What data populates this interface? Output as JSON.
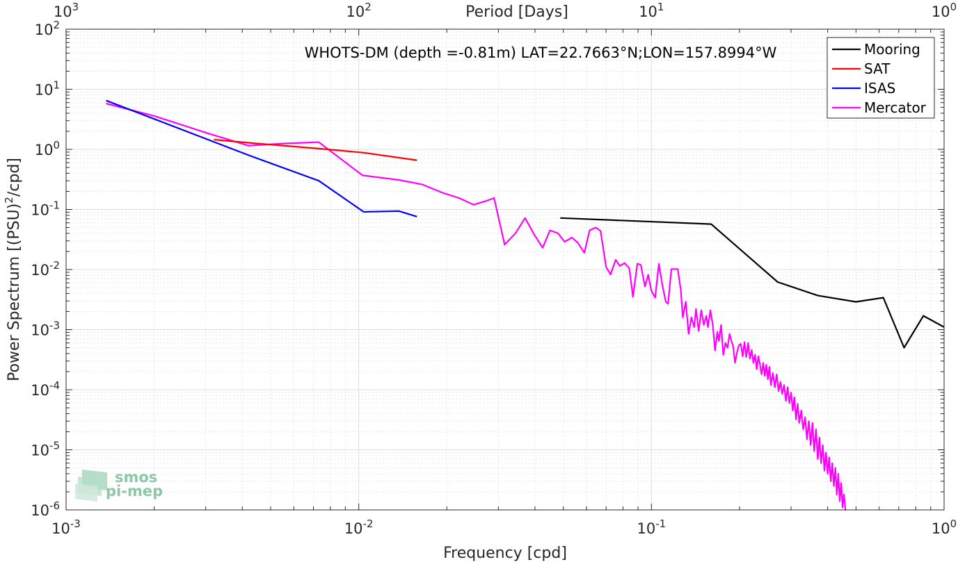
{
  "chart_data": {
    "type": "line",
    "title": "WHOTS-DM (depth =-0.81m) LAT=22.7663°N;LON=157.8994°W",
    "xlabel": "Frequency [cpd]",
    "ylabel": "Power Spectrum [(PSU)^2/cpd]",
    "top_xlabel": "Period [Days]",
    "xscale": "log",
    "yscale": "log",
    "xlim": [
      0.001,
      1
    ],
    "ylim": [
      1e-06,
      100
    ],
    "grid": true,
    "legend_position": "top-right",
    "x_ticks": [
      0.001,
      0.01,
      0.1,
      1
    ],
    "y_ticks": [
      1e-06,
      1e-05,
      0.0001,
      0.001,
      0.01,
      0.1,
      1,
      10,
      100
    ],
    "top_ticks": [
      1000,
      100,
      10,
      1
    ],
    "series": [
      {
        "name": "Mooring",
        "color": "#000000",
        "x": [
          0.0488,
          0.16,
          0.27,
          0.37,
          0.5,
          0.62,
          0.73,
          0.85,
          1.0
        ],
        "y": [
          0.072,
          0.057,
          0.0062,
          0.0037,
          0.0029,
          0.0034,
          0.0005,
          0.0017,
          0.0011
        ]
      },
      {
        "name": "SAT",
        "color": "#ff0000",
        "x": [
          0.0032,
          0.0045,
          0.0073,
          0.0104,
          0.0158
        ],
        "y": [
          1.45,
          1.25,
          1.03,
          0.88,
          0.66
        ]
      },
      {
        "name": "ISAS",
        "color": "#0000ff",
        "x": [
          0.00137,
          0.0042,
          0.0073,
          0.0104,
          0.0137,
          0.0158
        ],
        "y": [
          6.5,
          0.8,
          0.3,
          0.091,
          0.094,
          0.076
        ]
      },
      {
        "name": "Mercator",
        "color": "#ff00ff",
        "x": [
          0.00137,
          0.002,
          0.003,
          0.0042,
          0.0055,
          0.0073,
          0.0085,
          0.0103,
          0.0137,
          0.0165,
          0.0193,
          0.022,
          0.0247,
          0.0274,
          0.029,
          0.0315,
          0.0343,
          0.037,
          0.0398,
          0.0425,
          0.045,
          0.048,
          0.0505,
          0.0535,
          0.056,
          0.059,
          0.0615,
          0.0645,
          0.067,
          0.07,
          0.0725,
          0.0755,
          0.078,
          0.081,
          0.084,
          0.0865,
          0.0895,
          0.092,
          0.095,
          0.0975,
          0.1,
          0.103,
          0.106,
          0.109,
          0.112,
          0.114,
          0.117,
          0.12,
          0.123,
          0.126,
          0.128,
          0.131,
          0.134,
          0.137,
          0.14,
          0.142,
          0.145,
          0.148,
          0.151,
          0.154,
          0.156,
          0.159,
          0.162,
          0.165,
          0.168,
          0.17,
          0.173,
          0.176,
          0.179,
          0.182,
          0.185,
          0.188,
          0.19,
          0.193,
          0.196,
          0.199,
          0.202,
          0.205,
          0.208,
          0.211,
          0.214,
          0.217,
          0.22,
          0.223,
          0.226,
          0.229,
          0.232,
          0.235,
          0.238,
          0.241,
          0.244,
          0.247,
          0.25,
          0.253,
          0.256,
          0.26,
          0.264,
          0.268,
          0.272,
          0.276,
          0.28,
          0.284,
          0.288,
          0.292,
          0.296,
          0.3,
          0.304,
          0.308,
          0.312,
          0.316,
          0.32,
          0.325,
          0.33,
          0.335,
          0.34,
          0.345,
          0.35,
          0.355,
          0.36,
          0.365,
          0.37,
          0.375,
          0.38,
          0.385,
          0.39,
          0.395,
          0.4,
          0.405,
          0.41,
          0.415,
          0.42,
          0.425,
          0.43,
          0.435,
          0.44,
          0.445,
          0.45,
          0.455,
          0.46
        ],
        "y": [
          5.8,
          3.6,
          1.9,
          1.15,
          1.25,
          1.32,
          0.75,
          0.37,
          0.31,
          0.26,
          0.19,
          0.155,
          0.12,
          0.14,
          0.155,
          0.026,
          0.04,
          0.072,
          0.038,
          0.023,
          0.045,
          0.04,
          0.029,
          0.034,
          0.028,
          0.019,
          0.045,
          0.05,
          0.044,
          0.011,
          0.0083,
          0.0145,
          0.0115,
          0.0128,
          0.0105,
          0.0035,
          0.0125,
          0.012,
          0.0052,
          0.0082,
          0.0044,
          0.0034,
          0.0125,
          0.0055,
          0.0029,
          0.0027,
          0.0102,
          0.0102,
          0.0102,
          0.0045,
          0.0016,
          0.0029,
          0.00085,
          0.0016,
          0.0011,
          0.0022,
          0.00095,
          0.0021,
          0.0012,
          0.0017,
          0.0011,
          0.0021,
          0.0012,
          0.00045,
          0.00092,
          0.00065,
          0.0012,
          0.00038,
          0.0006,
          0.0005,
          0.00085,
          0.00062,
          0.00055,
          0.00028,
          0.00042,
          0.00055,
          0.00058,
          0.00036,
          0.00062,
          0.00035,
          0.0006,
          0.00033,
          0.00046,
          0.00028,
          0.00038,
          0.00022,
          0.00036,
          0.00026,
          0.00018,
          0.00028,
          0.00017,
          0.00026,
          0.00015,
          0.00024,
          0.00012,
          0.00019,
          0.00011,
          0.00018,
          9.5e-05,
          0.000135,
          8.5e-05,
          0.00012,
          6.5e-05,
          0.00011,
          6e-05,
          9e-05,
          4.5e-05,
          7.5e-05,
          3.2e-05,
          5.8e-05,
          2.8e-05,
          4.5e-05,
          2.2e-05,
          3.5e-05,
          1.5e-05,
          3e-05,
          1.2e-05,
          2.8e-05,
          9.5e-06,
          2.2e-05,
          7e-06,
          1.6e-05,
          6e-06,
          1.2e-05,
          4.5e-06,
          9e-06,
          4e-06,
          7.5e-06,
          3e-06,
          6e-06,
          2.5e-06,
          5e-06,
          1.8e-06,
          4e-06,
          1.4e-06,
          2.8e-06,
          1.1e-06,
          1.8e-06,
          9.8e-07
        ]
      }
    ],
    "logo_text_top": "smos",
    "logo_text_bottom": "pi-mep"
  }
}
